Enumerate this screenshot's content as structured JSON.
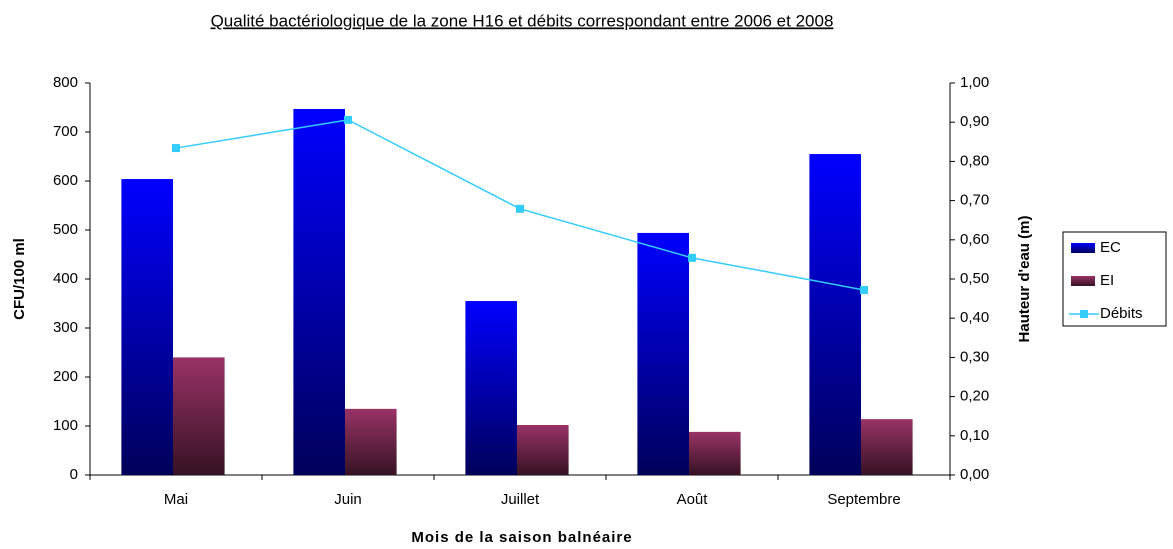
{
  "chart_data": {
    "type": "bar",
    "title": "Qualité bactériologique de la zone H16 et débits correspondant entre 2006 et 2008",
    "xlabel": "Mois de la saison balnéaire",
    "ylabel": "CFU/100 ml",
    "y2label": "Hauteur d'eau (m)",
    "categories": [
      "Mai",
      "Juin",
      "Juillet",
      "Août",
      "Septembre"
    ],
    "series": [
      {
        "name": "EC",
        "type": "bar",
        "color": "#0000ff",
        "values": [
          604,
          747,
          355,
          494,
          655
        ]
      },
      {
        "name": "EI",
        "type": "bar",
        "color": "#993366",
        "values": [
          240,
          135,
          102,
          88,
          114
        ]
      },
      {
        "name": "Débits",
        "type": "line",
        "axis": "y2",
        "color": "#33ccff",
        "values": [
          0.834,
          0.906,
          0.679,
          0.554,
          0.472
        ]
      }
    ],
    "ylim": [
      0,
      800
    ],
    "yticks": [
      0,
      100,
      200,
      300,
      400,
      500,
      600,
      700,
      800
    ],
    "y2lim": [
      0,
      1
    ],
    "y2ticks": [
      {
        "value": 0,
        "label": "0,00"
      },
      {
        "value": 0.1,
        "label": "0,10"
      },
      {
        "value": 0.2,
        "label": "0,20"
      },
      {
        "value": 0.3,
        "label": "0,30"
      },
      {
        "value": 0.4,
        "label": "0,40"
      },
      {
        "value": 0.5,
        "label": "0,50"
      },
      {
        "value": 0.6,
        "label": "0,60"
      },
      {
        "value": 0.7,
        "label": "0,70"
      },
      {
        "value": 0.8,
        "label": "0,80"
      },
      {
        "value": 0.9,
        "label": "0,90"
      },
      {
        "value": 1,
        "label": "1,00"
      }
    ],
    "legend": "right"
  }
}
